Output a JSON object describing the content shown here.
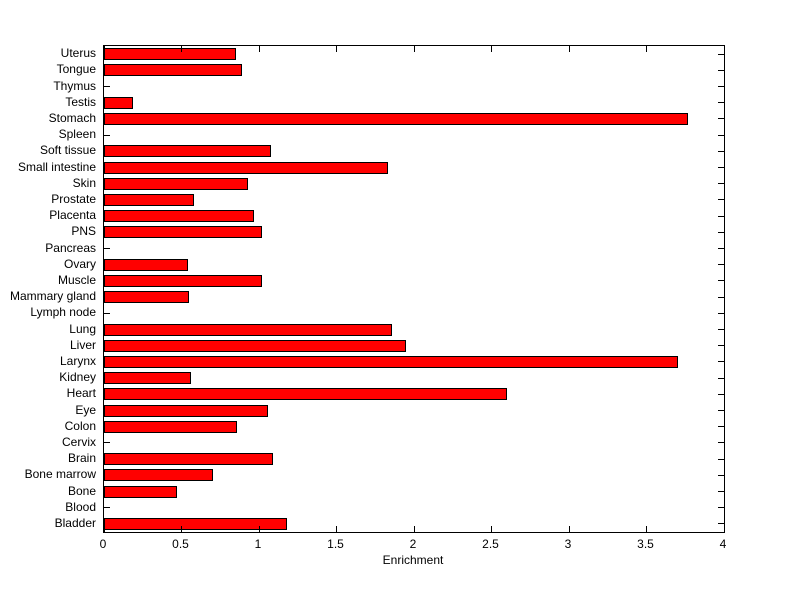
{
  "figure": {
    "background_color": "#ffffff",
    "axis_color": "#000000"
  },
  "chart_data": {
    "type": "bar",
    "orientation": "horizontal",
    "title": "",
    "xlabel": "Enrichment",
    "ylabel": "",
    "xlim": [
      0,
      4
    ],
    "xtick_labels": [
      "0",
      "0.5",
      "1",
      "1.5",
      "2",
      "2.5",
      "3",
      "3.5",
      "4"
    ],
    "xtick_values": [
      0,
      0.5,
      1,
      1.5,
      2,
      2.5,
      3,
      3.5,
      4
    ],
    "grid": false,
    "legend": null,
    "bar_color": "#ff0000",
    "bar_edge_color": "#000000",
    "categories": [
      "Uterus",
      "Tongue",
      "Thymus",
      "Testis",
      "Stomach",
      "Spleen",
      "Soft tissue",
      "Small intestine",
      "Skin",
      "Prostate",
      "Placenta",
      "PNS",
      "Pancreas",
      "Ovary",
      "Muscle",
      "Mammary gland",
      "Lymph node",
      "Lung",
      "Liver",
      "Larynx",
      "Kidney",
      "Heart",
      "Eye",
      "Colon",
      "Cervix",
      "Brain",
      "Bone marrow",
      "Bone",
      "Blood",
      "Bladder"
    ],
    "values": [
      0.85,
      0.89,
      0,
      0.19,
      3.77,
      0,
      1.08,
      1.83,
      0.93,
      0.58,
      0.97,
      1.02,
      0,
      0.54,
      1.02,
      0.55,
      0,
      1.86,
      1.95,
      3.7,
      0.56,
      2.6,
      1.06,
      0.86,
      0,
      1.09,
      0.7,
      0.47,
      0,
      1.18
    ]
  }
}
